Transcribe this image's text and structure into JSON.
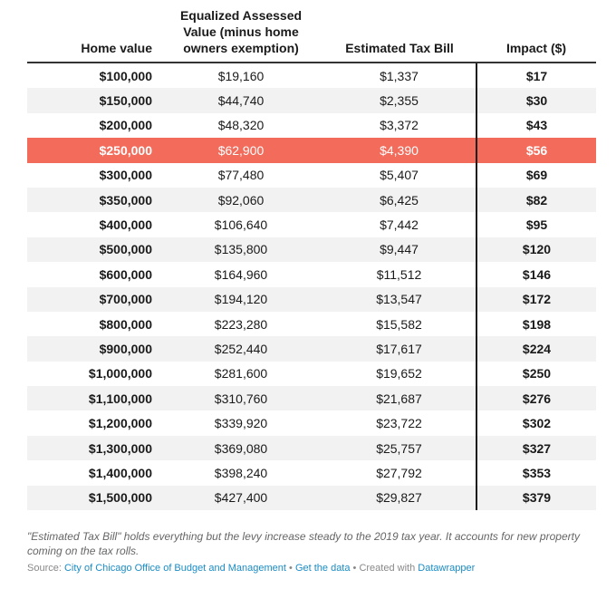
{
  "chart_data": {
    "type": "table",
    "columns": [
      "Home value",
      "Equalized Assessed Value (minus home owners exemption)",
      "Estimated Tax Bill",
      "Impact ($)"
    ],
    "header_lines": {
      "home_value": "Home value",
      "eav_line1": "Equalized Assessed",
      "eav_line2": "Value (minus home",
      "eav_line3": "owners exemption)",
      "tax_bill": "Estimated Tax Bill",
      "impact": "Impact ($)"
    },
    "rows": [
      [
        "$100,000",
        "$19,160",
        "$1,337",
        "$17"
      ],
      [
        "$150,000",
        "$44,740",
        "$2,355",
        "$30"
      ],
      [
        "$200,000",
        "$48,320",
        "$3,372",
        "$43"
      ],
      [
        "$250,000",
        "$62,900",
        "$4,390",
        "$56"
      ],
      [
        "$300,000",
        "$77,480",
        "$5,407",
        "$69"
      ],
      [
        "$350,000",
        "$92,060",
        "$6,425",
        "$82"
      ],
      [
        "$400,000",
        "$106,640",
        "$7,442",
        "$95"
      ],
      [
        "$500,000",
        "$135,800",
        "$9,447",
        "$120"
      ],
      [
        "$600,000",
        "$164,960",
        "$11,512",
        "$146"
      ],
      [
        "$700,000",
        "$194,120",
        "$13,547",
        "$172"
      ],
      [
        "$800,000",
        "$223,280",
        "$15,582",
        "$198"
      ],
      [
        "$900,000",
        "$252,440",
        "$17,617",
        "$224"
      ],
      [
        "$1,000,000",
        "$281,600",
        "$19,652",
        "$250"
      ],
      [
        "$1,100,000",
        "$310,760",
        "$21,687",
        "$276"
      ],
      [
        "$1,200,000",
        "$339,920",
        "$23,722",
        "$302"
      ],
      [
        "$1,300,000",
        "$369,080",
        "$25,757",
        "$327"
      ],
      [
        "$1,400,000",
        "$398,240",
        "$27,792",
        "$353"
      ],
      [
        "$1,500,000",
        "$427,400",
        "$29,827",
        "$379"
      ]
    ],
    "highlighted_row": "$250,000",
    "highlight_color": "#f26b5b"
  },
  "footer": {
    "note": "\"Estimated Tax Bill\" holds everything but the levy increase steady to the 2019 tax year. It accounts for new property coming on the tax rolls.",
    "source_prefix": "Source: ",
    "source_link": "City of Chicago Office of Budget and Management",
    "sep1": " • ",
    "get_data": "Get the data",
    "sep2": " • Created with ",
    "datawrapper": "Datawrapper"
  },
  "colors": {
    "link": "#1a8cc6",
    "stripe": "#f2f2f2"
  }
}
